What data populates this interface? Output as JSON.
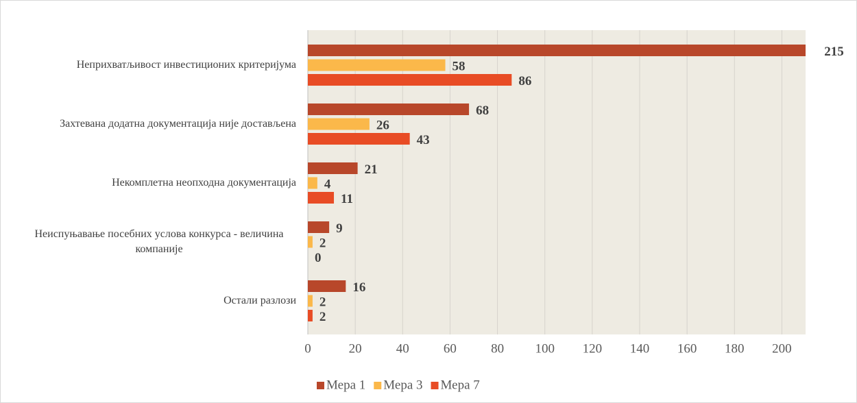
{
  "chart_data": {
    "type": "barh",
    "categories": [
      "Неприхватљивост инвестиционих критеријума",
      "Захтевана додатна документација није достављена",
      "Некомплетна неопходна документација",
      "Неиспуњавање посебних услова конкурса - величина компаније",
      "Остали разлози"
    ],
    "series": [
      {
        "name": "Мера 1",
        "color": "#b8472a",
        "values": [
          215,
          68,
          21,
          9,
          16
        ]
      },
      {
        "name": "Мера 3",
        "color": "#fbb84a",
        "values": [
          58,
          26,
          4,
          2,
          2
        ]
      },
      {
        "name": "Мера 7",
        "color": "#e84c25",
        "values": [
          86,
          43,
          11,
          0,
          2
        ]
      }
    ],
    "xlim": [
      0,
      210
    ],
    "xticks": [
      0,
      20,
      40,
      60,
      80,
      100,
      120,
      140,
      160,
      180,
      200
    ],
    "grid": true,
    "legend": "bottom",
    "plot_background": "#eeebe2"
  }
}
